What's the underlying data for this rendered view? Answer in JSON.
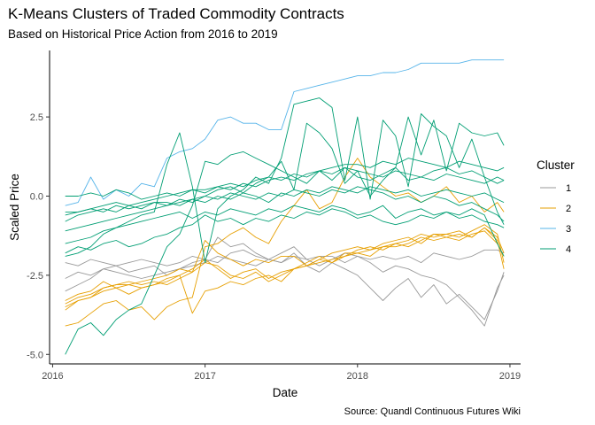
{
  "title": "K-Means Clusters of Traded Commodity Contracts",
  "subtitle": "Based on Historical Price Action from 2016 to 2019",
  "caption": "Source: Quandl Continuous Futures Wiki",
  "chart_data": {
    "type": "line",
    "xlabel": "Date",
    "ylabel": "Scaled Price",
    "xlim": [
      2015.98,
      2019.07
    ],
    "ylim": [
      -5.3,
      4.6
    ],
    "x_ticks": [
      2016,
      2017,
      2018,
      2019
    ],
    "x_tick_labels": [
      "2016",
      "2017",
      "2018",
      "2019"
    ],
    "y_ticks": [
      -5.0,
      -2.5,
      0.0,
      2.5
    ],
    "y_tick_labels": [
      "-5.0",
      "-2.5",
      "0.0",
      "2.5"
    ],
    "grid": false,
    "legend_title": "Cluster",
    "legend_position": "right",
    "clusters": [
      {
        "name": "1",
        "color": "#999999"
      },
      {
        "name": "2",
        "color": "#E69F00"
      },
      {
        "name": "3",
        "color": "#56B4E9"
      },
      {
        "name": "4",
        "color": "#009E73"
      }
    ],
    "x": [
      2016.083,
      2016.167,
      2016.25,
      2016.333,
      2016.417,
      2016.5,
      2016.583,
      2016.667,
      2016.75,
      2016.833,
      2016.917,
      2017.0,
      2017.083,
      2017.167,
      2017.25,
      2017.333,
      2017.417,
      2017.5,
      2017.583,
      2017.667,
      2017.75,
      2017.833,
      2017.917,
      2018.0,
      2018.083,
      2018.167,
      2018.25,
      2018.333,
      2018.417,
      2018.5,
      2018.583,
      2018.667,
      2018.75,
      2018.833,
      2018.917,
      2018.96
    ],
    "series": [
      {
        "cluster": "1",
        "values": [
          -2.1,
          -2.2,
          -2.0,
          -2.1,
          -2.2,
          -2.1,
          -2.0,
          -2.1,
          -2.2,
          -2.1,
          -1.9,
          -2.0,
          -2.1,
          -1.8,
          -1.7,
          -1.9,
          -2.0,
          -1.8,
          -1.6,
          -2.0,
          -1.9,
          -1.9,
          -2.1,
          -1.9,
          -2.0,
          -1.9,
          -2.0,
          -1.9,
          -2.1,
          -1.8,
          -1.9,
          -2.0,
          -1.9,
          -1.7,
          -1.7,
          -1.8
        ]
      },
      {
        "cluster": "1",
        "values": [
          -3.0,
          -2.8,
          -2.6,
          -2.3,
          -2.4,
          -2.5,
          -2.6,
          -2.5,
          -2.4,
          -2.3,
          -2.1,
          -2.0,
          -1.3,
          -1.6,
          -1.5,
          -1.8,
          -2.0,
          -2.1,
          -1.8,
          -2.2,
          -2.4,
          -2.1,
          -2.3,
          -2.5,
          -2.9,
          -3.3,
          -2.9,
          -2.6,
          -3.2,
          -2.8,
          -3.4,
          -3.1,
          -3.5,
          -3.9,
          -3.0,
          -2.4
        ]
      },
      {
        "cluster": "1",
        "values": [
          -2.6,
          -2.4,
          -2.5,
          -2.3,
          -2.2,
          -2.4,
          -2.3,
          -2.2,
          -2.5,
          -2.3,
          -2.2,
          -2.1,
          -1.9,
          -2.0,
          -2.1,
          -2.2,
          -2.0,
          -2.1,
          -1.9,
          -2.0,
          -2.2,
          -2.0,
          -1.8,
          -1.9,
          -2.1,
          -2.4,
          -2.2,
          -2.3,
          -2.5,
          -2.6,
          -2.8,
          -3.2,
          -3.6,
          -4.1,
          -2.9,
          -2.5
        ]
      },
      {
        "cluster": "2",
        "values": [
          -3.5,
          -3.3,
          -3.2,
          -2.9,
          -2.8,
          -2.7,
          -2.8,
          -2.7,
          -2.8,
          -2.6,
          -2.4,
          -2.1,
          -2.2,
          -2.5,
          -2.6,
          -2.4,
          -2.7,
          -2.5,
          -2.3,
          -2.2,
          -2.1,
          -2.0,
          -1.9,
          -1.7,
          -1.6,
          -1.7,
          -1.5,
          -1.4,
          -1.2,
          -1.3,
          -1.2,
          -1.3,
          -1.1,
          -0.9,
          -1.2,
          -2.1
        ]
      },
      {
        "cluster": "2",
        "values": [
          -3.4,
          -3.2,
          -3.1,
          -2.9,
          -2.8,
          -2.8,
          -2.9,
          -2.8,
          -2.7,
          -2.5,
          -2.3,
          -2.0,
          -2.3,
          -2.6,
          -2.4,
          -2.3,
          -2.6,
          -2.4,
          -2.3,
          -2.1,
          -1.9,
          -2.1,
          -1.8,
          -1.8,
          -1.7,
          -1.6,
          -1.6,
          -1.5,
          -1.3,
          -1.4,
          -1.3,
          -1.4,
          -1.2,
          -1.1,
          -1.5,
          -1.9
        ]
      },
      {
        "cluster": "2",
        "values": [
          -4.1,
          -4.0,
          -3.7,
          -3.4,
          -3.3,
          -3.6,
          -3.5,
          -3.9,
          -3.5,
          -3.3,
          -3.2,
          -1.6,
          -1.5,
          -1.2,
          -1.0,
          -1.3,
          -1.5,
          -0.8,
          -0.3,
          0.2,
          -0.4,
          -0.2,
          0.6,
          1.2,
          0.6,
          0.3,
          0.0,
          0.1,
          -0.2,
          0.0,
          0.3,
          -0.2,
          0.0,
          -0.5,
          -0.2,
          -0.5
        ]
      },
      {
        "cluster": "2",
        "values": [
          -3.3,
          -3.1,
          -3.0,
          -2.7,
          -2.9,
          -2.8,
          -2.7,
          -2.6,
          -2.5,
          -2.3,
          -2.4,
          -1.4,
          -1.8,
          -2.0,
          -2.2,
          -2.0,
          -2.1,
          -1.9,
          -1.9,
          -2.2,
          -2.0,
          -1.8,
          -1.7,
          -1.6,
          -1.7,
          -1.5,
          -1.4,
          -1.3,
          -1.5,
          -1.2,
          -1.2,
          -1.1,
          -1.3,
          -1.0,
          -1.4,
          -2.3
        ]
      },
      {
        "cluster": "2",
        "values": [
          -3.6,
          -3.3,
          -3.2,
          -3.0,
          -2.9,
          -3.1,
          -2.9,
          -2.8,
          -2.6,
          -2.5,
          -3.7,
          -3.0,
          -2.9,
          -2.7,
          -2.8,
          -2.6,
          -2.5,
          -2.7,
          -2.3,
          -2.2,
          -2.0,
          -2.1,
          -1.9,
          -1.8,
          -1.9,
          -1.6,
          -1.5,
          -1.6,
          -1.4,
          -1.2,
          -1.3,
          -1.2,
          -1.3,
          -1.0,
          -1.3,
          -1.8
        ]
      },
      {
        "cluster": "3",
        "values": [
          -0.3,
          -0.2,
          0.6,
          -0.1,
          0.2,
          0.0,
          0.4,
          0.3,
          1.2,
          1.4,
          1.5,
          1.8,
          2.4,
          2.5,
          2.3,
          2.3,
          2.1,
          2.1,
          3.3,
          3.4,
          3.5,
          3.6,
          3.7,
          3.8,
          3.8,
          3.9,
          3.9,
          4.0,
          4.2,
          4.2,
          4.2,
          4.2,
          4.3,
          4.3,
          4.3,
          4.3
        ]
      },
      {
        "cluster": "4",
        "values": [
          -5.0,
          -4.2,
          -4.0,
          -4.4,
          -3.9,
          -3.6,
          -3.4,
          -2.5,
          -1.6,
          -1.2,
          -0.3,
          1.1,
          1.0,
          1.3,
          1.4,
          1.2,
          1.0,
          0.8,
          0.6,
          0.4,
          0.8,
          0.5,
          0.9,
          0.6,
          0.5,
          0.7,
          0.9,
          0.5,
          0.6,
          0.8,
          0.9,
          0.7,
          0.8,
          0.6,
          0.4,
          0.5
        ]
      },
      {
        "cluster": "4",
        "values": [
          -1.9,
          -1.8,
          -1.6,
          -1.2,
          -1.0,
          -0.8,
          -0.6,
          -0.5,
          1.0,
          2.0,
          0.3,
          -2.1,
          -0.4,
          0.0,
          0.2,
          0.6,
          0.4,
          1.2,
          2.9,
          3.0,
          3.1,
          2.8,
          0.5,
          2.5,
          -0.1,
          2.4,
          1.9,
          0.3,
          2.6,
          2.2,
          1.9,
          0.9,
          1.8,
          0.6,
          -0.5,
          -0.9
        ]
      },
      {
        "cluster": "4",
        "values": [
          -1.1,
          -1.0,
          -0.9,
          -0.8,
          -0.7,
          -0.6,
          -0.5,
          -0.4,
          -0.3,
          -0.2,
          -0.1,
          0.0,
          0.2,
          0.3,
          0.1,
          0.4,
          0.6,
          1.1,
          0.2,
          2.3,
          2.0,
          1.5,
          0.4,
          0.8,
          0.0,
          0.5,
          0.9,
          2.5,
          1.3,
          2.4,
          0.8,
          2.3,
          2.0,
          1.9,
          2.0,
          1.6
        ]
      },
      {
        "cluster": "4",
        "values": [
          -0.6,
          -0.5,
          -0.4,
          -0.3,
          -0.2,
          -0.3,
          -0.2,
          -0.1,
          0.0,
          0.1,
          0.2,
          0.1,
          0.3,
          0.2,
          0.4,
          0.3,
          0.5,
          0.6,
          0.5,
          0.7,
          0.8,
          0.9,
          1.0,
          1.0,
          0.9,
          1.1,
          1.0,
          1.2,
          1.1,
          1.0,
          0.9,
          1.1,
          1.0,
          0.9,
          0.8,
          0.9
        ]
      },
      {
        "cluster": "4",
        "values": [
          0.0,
          0.0,
          0.1,
          0.0,
          0.2,
          0.1,
          -0.1,
          0.0,
          0.1,
          0.0,
          0.2,
          0.2,
          0.3,
          0.4,
          0.3,
          0.5,
          0.6,
          0.5,
          0.7,
          0.6,
          0.8,
          0.7,
          0.9,
          0.8,
          0.7,
          0.6,
          0.8,
          0.7,
          0.6,
          0.5,
          0.7,
          0.6,
          0.5,
          0.4,
          0.6,
          0.5
        ]
      },
      {
        "cluster": "4",
        "values": [
          -0.5,
          -0.5,
          -0.4,
          -0.5,
          -0.3,
          -0.4,
          -0.3,
          -0.2,
          -0.2,
          -0.3,
          -0.1,
          -0.2,
          0.0,
          -0.1,
          0.1,
          0.0,
          -0.2,
          0.1,
          0.0,
          0.2,
          0.1,
          0.3,
          0.2,
          0.1,
          0.3,
          0.2,
          0.1,
          0.2,
          0.0,
          0.1,
          0.2,
          0.1,
          0.0,
          0.1,
          -0.1,
          -0.2
        ]
      },
      {
        "cluster": "4",
        "values": [
          -1.5,
          -1.4,
          -1.3,
          -1.1,
          -1.0,
          -0.9,
          -0.8,
          -0.7,
          -0.6,
          -0.5,
          -0.7,
          -0.5,
          -0.6,
          -0.4,
          -0.5,
          -0.6,
          -0.4,
          -0.5,
          -0.3,
          -0.4,
          -0.5,
          -0.3,
          -0.4,
          -0.6,
          -0.5,
          -0.3,
          -0.7,
          -0.5,
          -0.4,
          -0.6,
          -0.5,
          -0.7,
          -0.6,
          -0.8,
          -0.9,
          -1.0
        ]
      },
      {
        "cluster": "4",
        "values": [
          -0.8,
          -0.6,
          -0.5,
          -0.4,
          -0.5,
          -0.3,
          -0.4,
          -0.2,
          -0.3,
          -0.1,
          -0.2,
          0.0,
          -0.1,
          0.1,
          0.0,
          -0.1,
          0.1,
          0.0,
          0.2,
          0.1,
          0.0,
          0.2,
          0.1,
          0.3,
          0.2,
          0.1,
          -0.1,
          0.0,
          -0.2,
          0.0,
          -0.1,
          -0.3,
          -0.2,
          -0.4,
          -0.6,
          -0.8
        ]
      },
      {
        "cluster": "4",
        "values": [
          -1.8,
          -1.6,
          -1.7,
          -1.5,
          -1.4,
          -1.6,
          -1.5,
          -1.3,
          -1.2,
          -1.0,
          -0.9,
          -0.6,
          -0.8,
          -0.7,
          -0.9,
          -0.7,
          -0.8,
          -0.6,
          -0.7,
          -0.5,
          -0.6,
          -0.4,
          -0.5,
          -0.7,
          -0.6,
          -0.8,
          -0.9,
          -0.8,
          -0.6,
          -0.7,
          -0.5,
          -0.6,
          -0.4,
          -0.6,
          -1.5,
          -1.9
        ]
      }
    ]
  }
}
